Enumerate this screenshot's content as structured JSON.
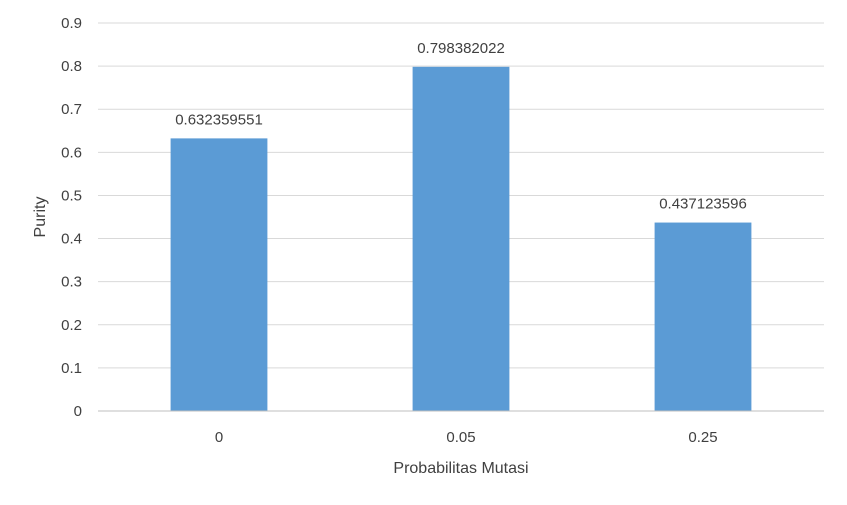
{
  "chart_data": {
    "type": "bar",
    "title": "",
    "xlabel": "Probabilitas Mutasi",
    "ylabel": "Purity",
    "categories": [
      "0",
      "0.05",
      "0.25"
    ],
    "values": [
      0.632359551,
      0.798382022,
      0.437123596
    ],
    "data_labels": [
      "0.632359551",
      "0.798382022",
      "0.437123596"
    ],
    "ylim": [
      0,
      0.9
    ],
    "yticks": [
      0,
      0.1,
      0.2,
      0.3,
      0.4,
      0.5,
      0.6,
      0.7,
      0.8,
      0.9
    ],
    "ytick_labels": [
      "0",
      "0.1",
      "0.2",
      "0.3",
      "0.4",
      "0.5",
      "0.6",
      "0.7",
      "0.8",
      "0.9"
    ],
    "grid": true,
    "legend": "none",
    "colors": {
      "bar": "#5b9bd5",
      "grid": "#d9d9d9",
      "axis": "#bfbfbf",
      "text": "#404040"
    }
  }
}
